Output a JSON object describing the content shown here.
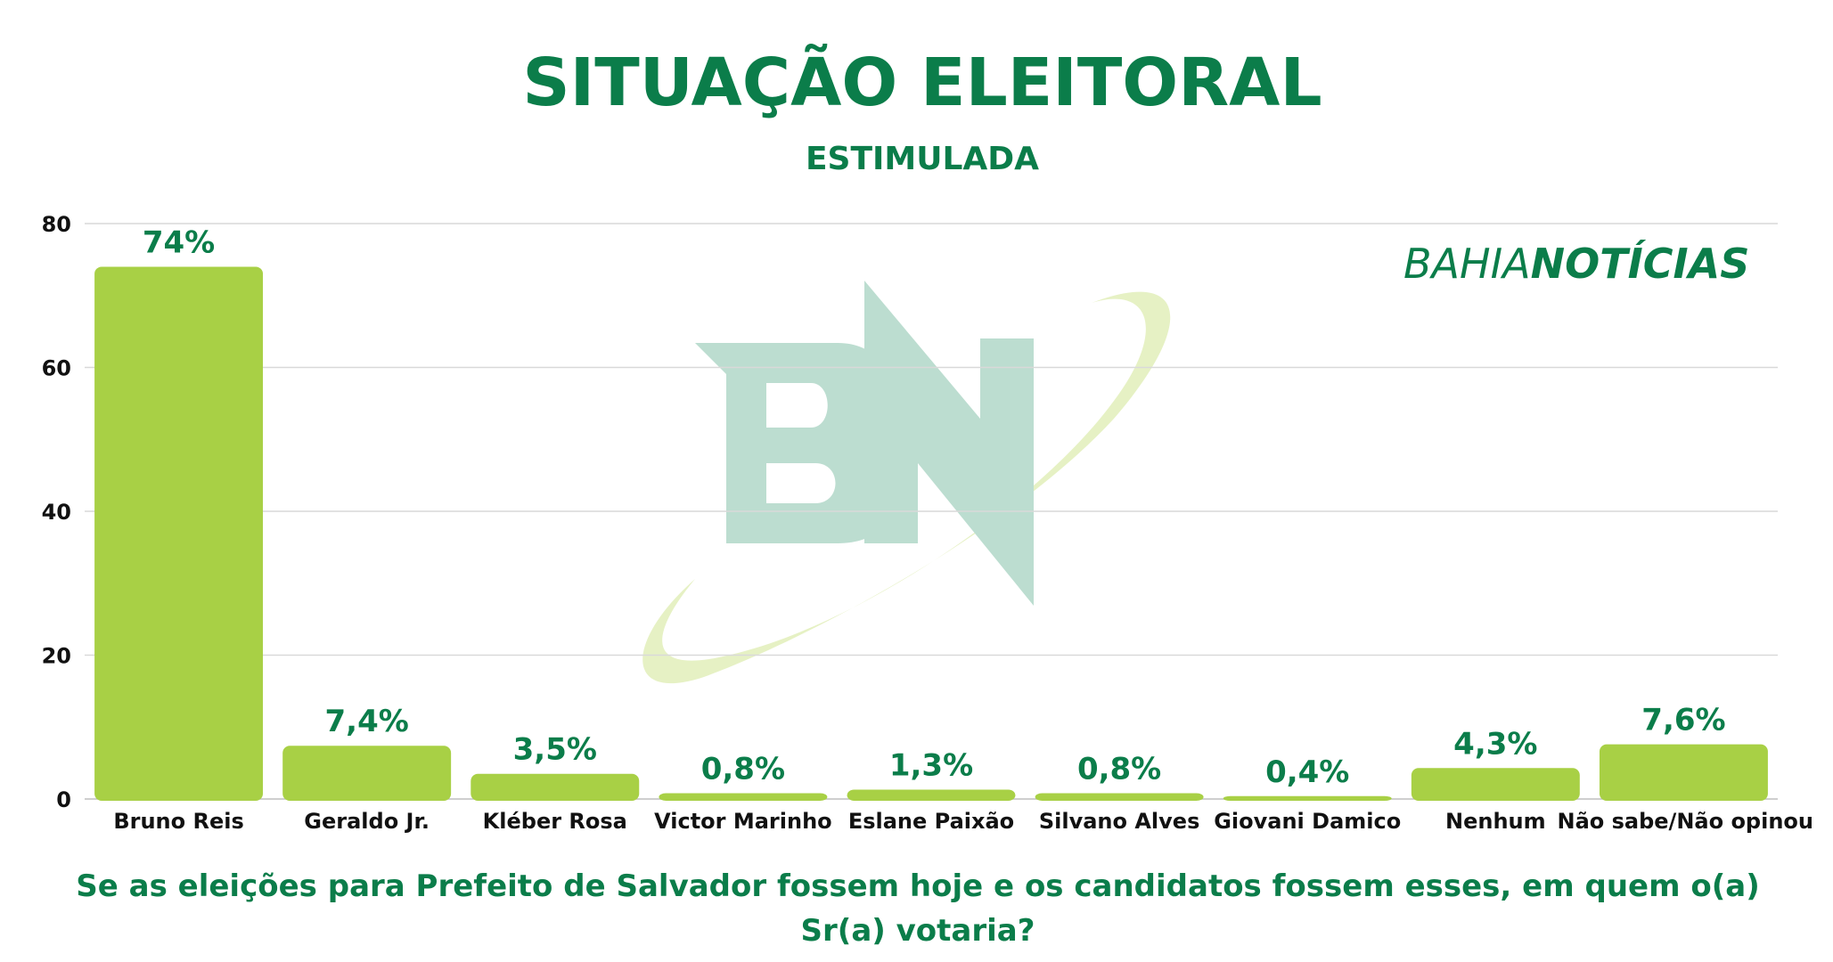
{
  "chart_data": {
    "type": "bar",
    "title": "SITUAÇÃO ELEITORAL",
    "subtitle": "ESTIMULADA",
    "categories": [
      "Bruno Reis",
      "Geraldo Jr.",
      "Kléber Rosa",
      "Victor Marinho",
      "Eslane Paixão",
      "Silvano Alves",
      "Giovani Damico",
      "Nenhum",
      "Não sabe/Não opinou"
    ],
    "values": [
      74,
      7.4,
      3.5,
      0.8,
      1.3,
      0.8,
      0.4,
      4.3,
      7.6
    ],
    "value_labels": [
      "74%",
      "7,4%",
      "3,5%",
      "0,8%",
      "1,3%",
      "0,8%",
      "0,4%",
      "4,3%",
      "7,6%"
    ],
    "yticks": [
      0,
      20,
      40,
      60,
      80
    ],
    "ylim": [
      0,
      80
    ],
    "grid": true,
    "legend": "none"
  },
  "question": "Se as eleições para Prefeito de Salvador fossem hoje e os candidatos fossem esses, em quem o(a) Sr(a) votaria?",
  "brand": {
    "part1": "BAHIA",
    "part2": "NOTÍCIAS"
  },
  "watermark": "BN",
  "colors": {
    "bar": "#a8d045",
    "accent": "#0b7d4a",
    "grid": "#d9d9d9"
  }
}
